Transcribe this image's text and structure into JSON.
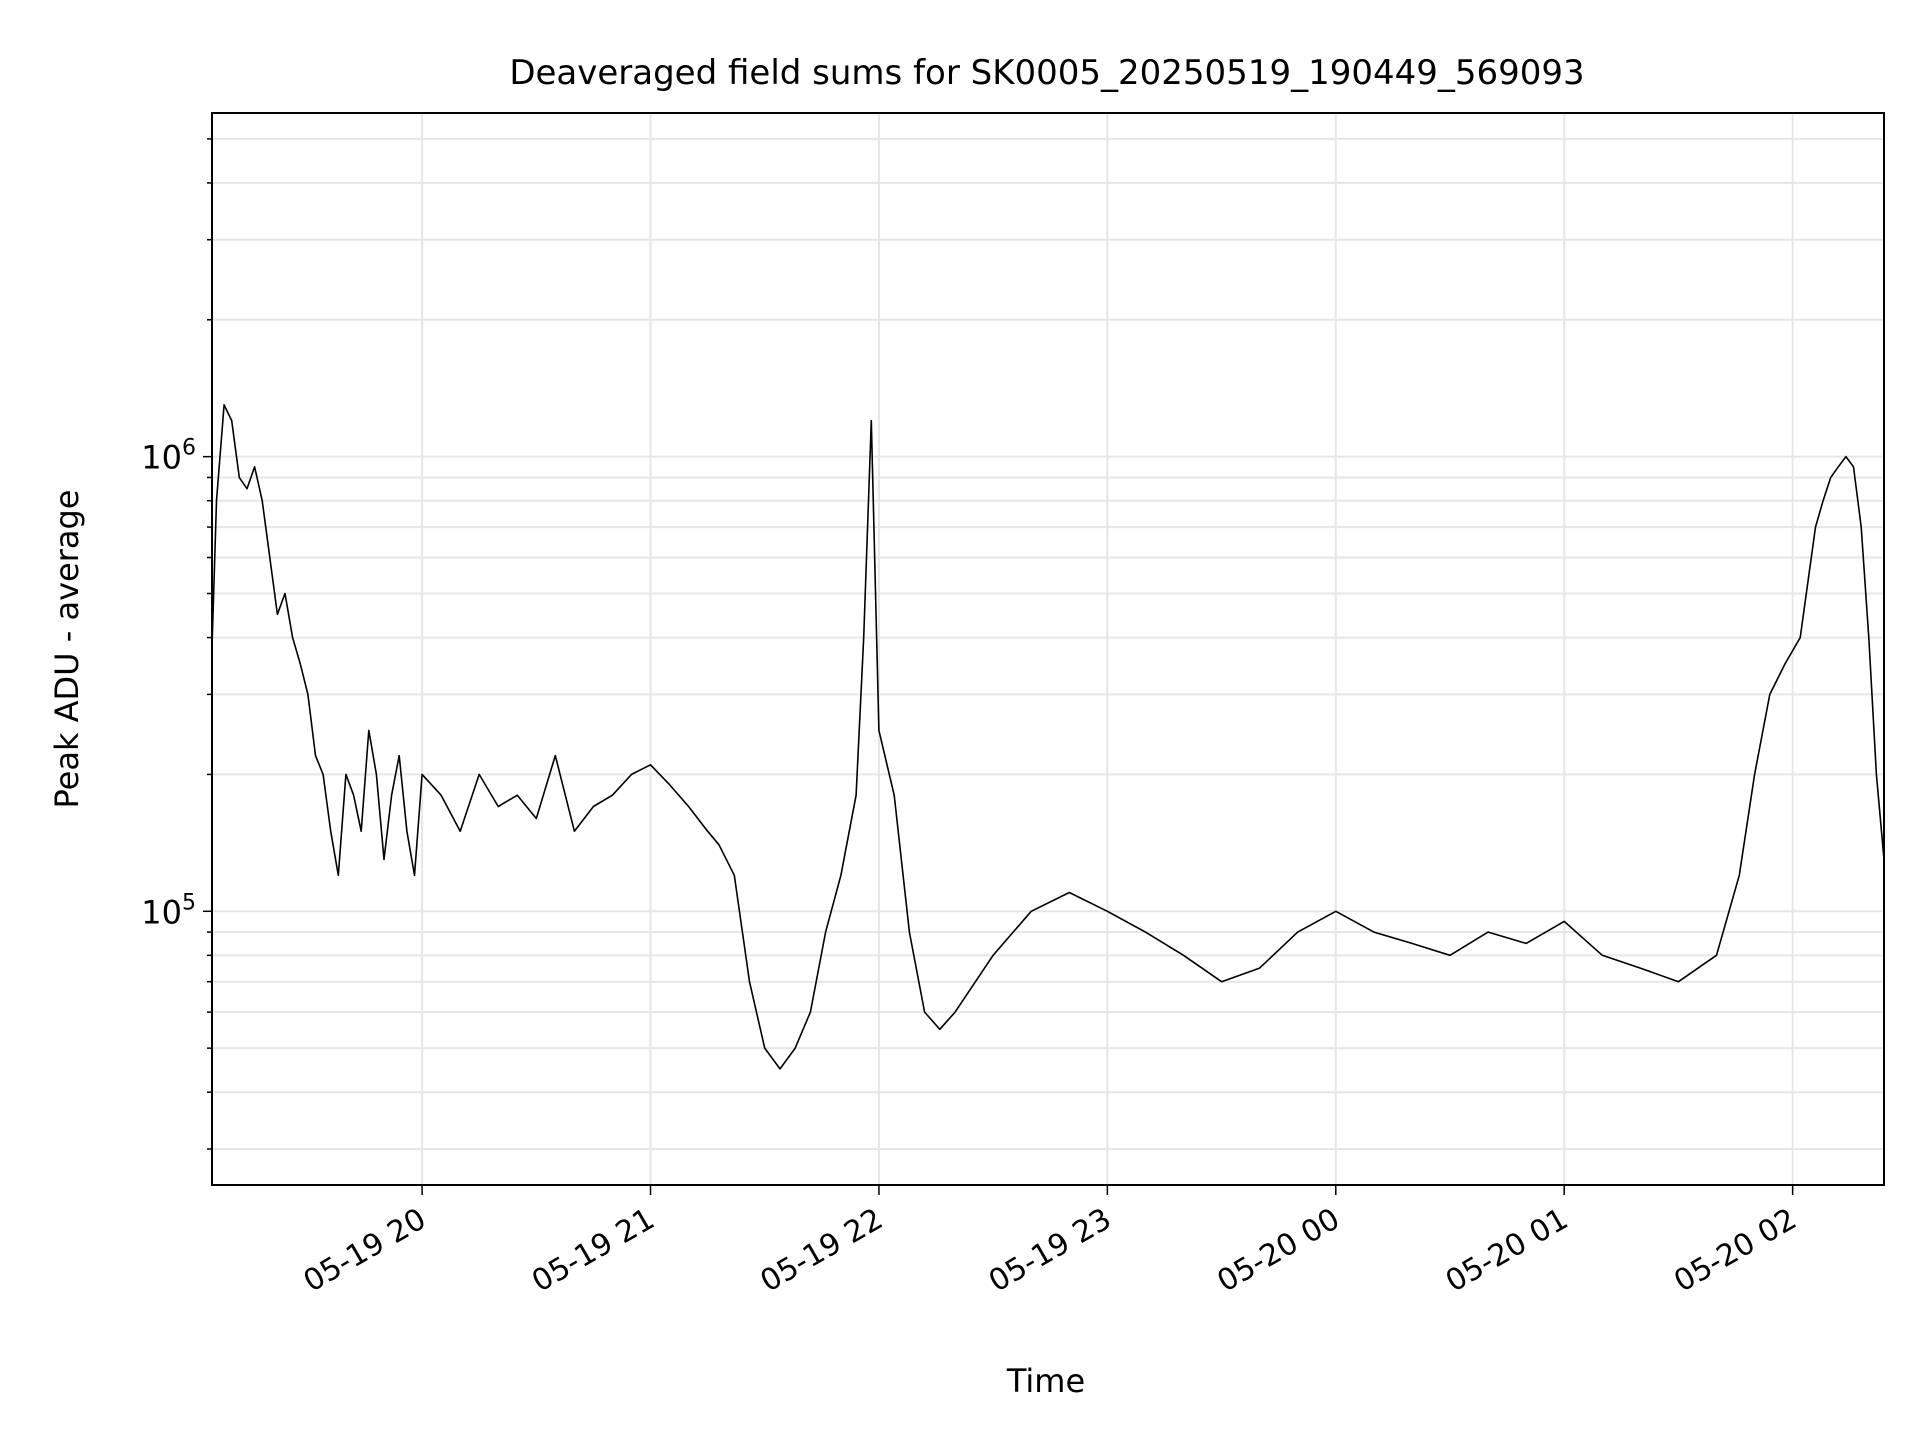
{
  "chart_data": {
    "type": "line",
    "title": "Deaveraged field sums for SK0005_20250519_190449_569093",
    "xlabel": "Time",
    "ylabel": "Peak ADU - average",
    "yscale": "log",
    "ylim": [
      25000,
      5700000
    ],
    "xlim": [
      "2025-05-19 19:04:49",
      "2025-05-20 02:24:00"
    ],
    "grid": true,
    "line_color": "#000000",
    "x_ticks": [
      {
        "label": "05-19 20",
        "time": "2025-05-19 20:00"
      },
      {
        "label": "05-19 21",
        "time": "2025-05-19 21:00"
      },
      {
        "label": "05-19 22",
        "time": "2025-05-19 22:00"
      },
      {
        "label": "05-19 23",
        "time": "2025-05-19 23:00"
      },
      {
        "label": "05-20 00",
        "time": "2025-05-20 00:00"
      },
      {
        "label": "05-20 01",
        "time": "2025-05-20 01:00"
      },
      {
        "label": "05-20 02",
        "time": "2025-05-20 02:00"
      }
    ],
    "y_ticks": [
      {
        "base": "10",
        "exp": "5",
        "value": 100000
      },
      {
        "base": "10",
        "exp": "6",
        "value": 1000000
      }
    ],
    "series": [
      {
        "x": [
          "2025-05-19 19:04:49",
          "2025-05-19 19:06",
          "2025-05-19 19:08",
          "2025-05-19 19:10",
          "2025-05-19 19:12",
          "2025-05-19 19:14",
          "2025-05-19 19:16",
          "2025-05-19 19:18",
          "2025-05-19 19:20",
          "2025-05-19 19:22",
          "2025-05-19 19:24",
          "2025-05-19 19:26",
          "2025-05-19 19:28",
          "2025-05-19 19:30",
          "2025-05-19 19:32",
          "2025-05-19 19:34",
          "2025-05-19 19:36",
          "2025-05-19 19:38",
          "2025-05-19 19:40",
          "2025-05-19 19:42",
          "2025-05-19 19:44",
          "2025-05-19 19:46",
          "2025-05-19 19:48",
          "2025-05-19 19:50",
          "2025-05-19 19:52",
          "2025-05-19 19:54",
          "2025-05-19 19:56",
          "2025-05-19 19:58",
          "2025-05-19 20:00",
          "2025-05-19 20:05",
          "2025-05-19 20:10",
          "2025-05-19 20:15",
          "2025-05-19 20:20",
          "2025-05-19 20:25",
          "2025-05-19 20:30",
          "2025-05-19 20:35",
          "2025-05-19 20:40",
          "2025-05-19 20:45",
          "2025-05-19 20:50",
          "2025-05-19 20:55",
          "2025-05-19 21:00",
          "2025-05-19 21:05",
          "2025-05-19 21:10",
          "2025-05-19 21:15",
          "2025-05-19 21:18",
          "2025-05-19 21:22",
          "2025-05-19 21:26",
          "2025-05-19 21:30",
          "2025-05-19 21:34",
          "2025-05-19 21:38",
          "2025-05-19 21:42",
          "2025-05-19 21:46",
          "2025-05-19 21:50",
          "2025-05-19 21:54",
          "2025-05-19 21:56",
          "2025-05-19 21:58",
          "2025-05-19 22:00",
          "2025-05-19 22:04",
          "2025-05-19 22:08",
          "2025-05-19 22:12",
          "2025-05-19 22:16",
          "2025-05-19 22:20",
          "2025-05-19 22:30",
          "2025-05-19 22:40",
          "2025-05-19 22:50",
          "2025-05-19 23:00",
          "2025-05-19 23:10",
          "2025-05-19 23:20",
          "2025-05-19 23:30",
          "2025-05-19 23:40",
          "2025-05-19 23:50",
          "2025-05-20 00:00",
          "2025-05-20 00:10",
          "2025-05-20 00:20",
          "2025-05-20 00:30",
          "2025-05-20 00:40",
          "2025-05-20 00:50",
          "2025-05-20 01:00",
          "2025-05-20 01:10",
          "2025-05-20 01:20",
          "2025-05-20 01:30",
          "2025-05-20 01:40",
          "2025-05-20 01:46",
          "2025-05-20 01:50",
          "2025-05-20 01:54",
          "2025-05-20 01:58",
          "2025-05-20 02:02",
          "2025-05-20 02:06",
          "2025-05-20 02:08",
          "2025-05-20 02:10",
          "2025-05-20 02:12",
          "2025-05-20 02:14",
          "2025-05-20 02:16",
          "2025-05-20 02:18",
          "2025-05-20 02:20",
          "2025-05-20 02:22",
          "2025-05-20 02:24"
        ],
        "y": [
          380000,
          800000,
          1300000,
          1200000,
          900000,
          850000,
          950000,
          800000,
          600000,
          450000,
          500000,
          400000,
          350000,
          300000,
          220000,
          200000,
          150000,
          120000,
          200000,
          180000,
          150000,
          250000,
          200000,
          130000,
          180000,
          220000,
          150000,
          120000,
          200000,
          180000,
          150000,
          200000,
          170000,
          180000,
          160000,
          220000,
          150000,
          170000,
          180000,
          200000,
          210000,
          190000,
          170000,
          150000,
          140000,
          120000,
          70000,
          50000,
          45000,
          50000,
          60000,
          90000,
          120000,
          180000,
          400000,
          1200000,
          250000,
          180000,
          90000,
          60000,
          55000,
          60000,
          80000,
          100000,
          110000,
          100000,
          90000,
          80000,
          70000,
          75000,
          90000,
          100000,
          90000,
          85000,
          80000,
          90000,
          85000,
          95000,
          80000,
          75000,
          70000,
          80000,
          120000,
          200000,
          300000,
          350000,
          400000,
          700000,
          800000,
          900000,
          950000,
          1000000,
          950000,
          700000,
          400000,
          200000,
          130000
        ]
      }
    ]
  }
}
